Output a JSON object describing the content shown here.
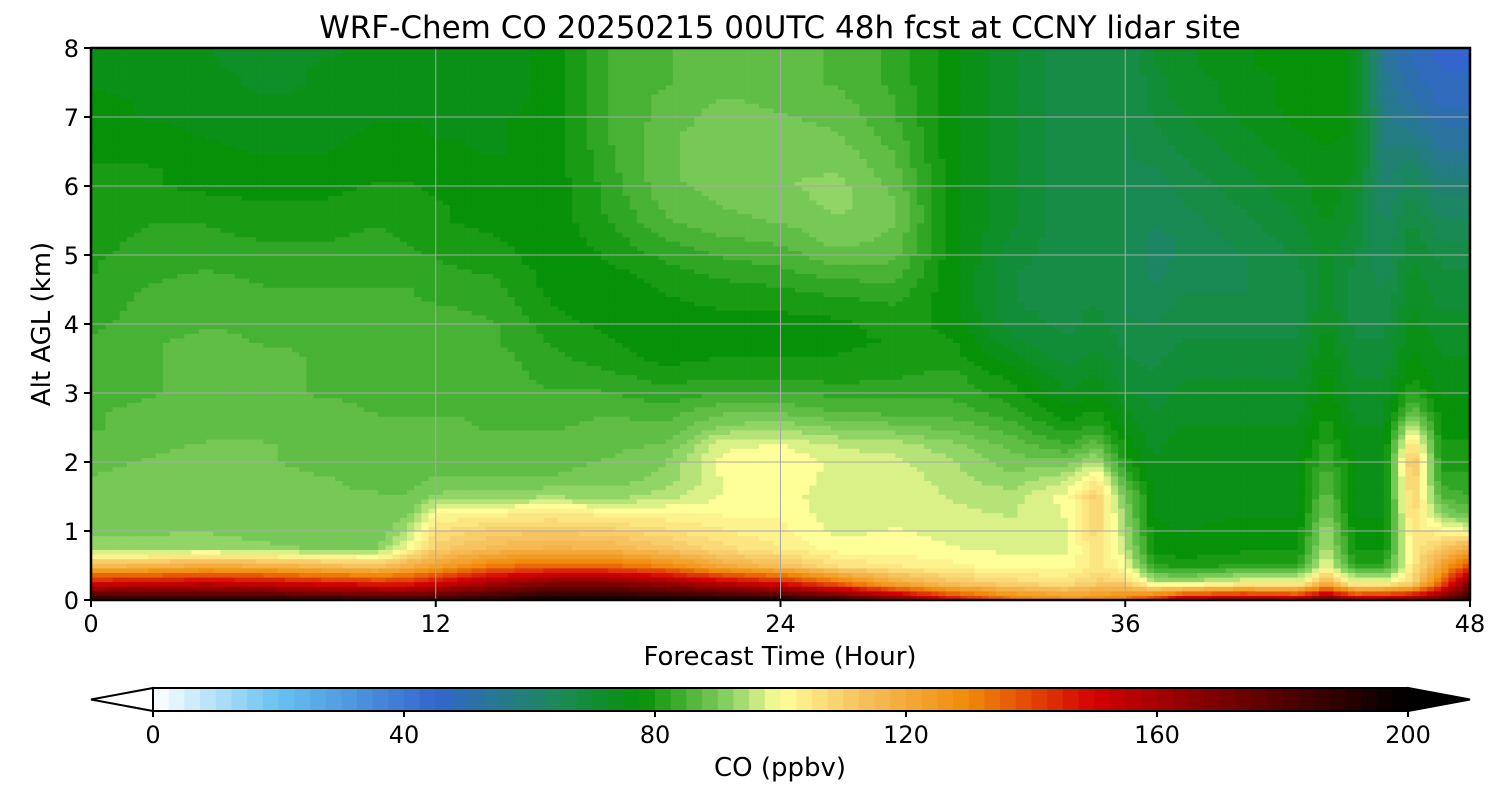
{
  "chart_data": {
    "type": "contour",
    "title": "WRF-Chem CO  20250215 00UTC 48h fcst at CCNY lidar site",
    "xlabel": "Forecast Time (Hour)",
    "ylabel": "Alt AGL (km)",
    "xlim": [
      0,
      48
    ],
    "ylim": [
      0,
      8
    ],
    "xticks": [
      0,
      12,
      24,
      36,
      48
    ],
    "yticks": [
      0,
      1,
      2,
      3,
      4,
      5,
      6,
      7,
      8
    ],
    "grid": true,
    "colorbar": {
      "label": "CO  (ppbv)",
      "vmin": 0,
      "vmax": 200,
      "ticks": [
        0,
        40,
        80,
        120,
        160,
        200
      ],
      "extend": "both",
      "colormap": [
        {
          "v": 0,
          "c": "#ffffff"
        },
        {
          "v": 20,
          "c": "#66c2f0"
        },
        {
          "v": 45,
          "c": "#3366cc"
        },
        {
          "v": 65,
          "c": "#1a8a55"
        },
        {
          "v": 78,
          "c": "#069206"
        },
        {
          "v": 92,
          "c": "#8ad264"
        },
        {
          "v": 100,
          "c": "#ffff99"
        },
        {
          "v": 112,
          "c": "#f7c462"
        },
        {
          "v": 130,
          "c": "#f08a08"
        },
        {
          "v": 150,
          "c": "#d40000"
        },
        {
          "v": 165,
          "c": "#8e0000"
        },
        {
          "v": 200,
          "c": "#000000"
        }
      ]
    },
    "columns": [
      {
        "t": 0,
        "ppbv": [
          190,
          150,
          115,
          92,
          91,
          90,
          90,
          89,
          88,
          87,
          86,
          86,
          85,
          84,
          84,
          84,
          83,
          82,
          82,
          81,
          81,
          80,
          80,
          79,
          79,
          79,
          78,
          78,
          77,
          77,
          76,
          76,
          76
        ]
      },
      {
        "t": 2,
        "ppbv": [
          190,
          152,
          117,
          92,
          91,
          91,
          91,
          90,
          89,
          88,
          87,
          87,
          86,
          86,
          86,
          86,
          85,
          85,
          84,
          83,
          82,
          82,
          81,
          80,
          79,
          79,
          78,
          77,
          76,
          76,
          75,
          75,
          75
        ]
      },
      {
        "t": 4,
        "ppbv": [
          191,
          154,
          120,
          94,
          91,
          91,
          91,
          90,
          90,
          89,
          88,
          87,
          87,
          87,
          87,
          87,
          86,
          86,
          85,
          84,
          83,
          82,
          81,
          80,
          78,
          78,
          77,
          76,
          76,
          75,
          75,
          74,
          74
        ]
      },
      {
        "t": 6,
        "ppbv": [
          190,
          152,
          118,
          92,
          90,
          90,
          90,
          90,
          89,
          89,
          88,
          87,
          87,
          87,
          87,
          86,
          86,
          85,
          84,
          83,
          82,
          81,
          80,
          79,
          77,
          77,
          76,
          75,
          74,
          74,
          73,
          73,
          72
        ]
      },
      {
        "t": 8,
        "ppbv": [
          188,
          148,
          115,
          91,
          90,
          90,
          89,
          89,
          88,
          88,
          87,
          87,
          86,
          86,
          86,
          86,
          85,
          85,
          84,
          83,
          82,
          81,
          80,
          79,
          78,
          77,
          76,
          75,
          75,
          74,
          74,
          74,
          73
        ]
      },
      {
        "t": 10,
        "ppbv": [
          186,
          145,
          112,
          91,
          89,
          89,
          89,
          88,
          88,
          87,
          87,
          86,
          86,
          86,
          86,
          86,
          85,
          85,
          84,
          83,
          82,
          82,
          81,
          80,
          79,
          78,
          78,
          77,
          76,
          76,
          75,
          75,
          75
        ]
      },
      {
        "t": 11,
        "ppbv": [
          185,
          145,
          118,
          100,
          95,
          90,
          89,
          88,
          88,
          87,
          87,
          86,
          86,
          86,
          86,
          85,
          85,
          84,
          84,
          83,
          82,
          81,
          80,
          80,
          79,
          78,
          78,
          77,
          76,
          76,
          75,
          75,
          75
        ]
      },
      {
        "t": 12,
        "ppbv": [
          186,
          150,
          122,
          110,
          106,
          101,
          92,
          89,
          88,
          87,
          87,
          86,
          86,
          86,
          86,
          85,
          85,
          84,
          83,
          82,
          81,
          80,
          79,
          79,
          78,
          78,
          77,
          76,
          76,
          75,
          75,
          75,
          74
        ]
      },
      {
        "t": 14,
        "ppbv": [
          190,
          160,
          132,
          115,
          110,
          103,
          93,
          89,
          88,
          87,
          86,
          86,
          85,
          85,
          85,
          84,
          84,
          83,
          82,
          81,
          80,
          79,
          78,
          78,
          77,
          77,
          76,
          76,
          76,
          75,
          75,
          75,
          75
        ]
      },
      {
        "t": 16,
        "ppbv": [
          198,
          168,
          136,
          117,
          111,
          104,
          94,
          89,
          88,
          87,
          86,
          85,
          84,
          83,
          82,
          81,
          80,
          79,
          78,
          78,
          77,
          77,
          77,
          77,
          77,
          77,
          77,
          77,
          77,
          77,
          77,
          77,
          77
        ]
      },
      {
        "t": 18,
        "ppbv": [
          196,
          168,
          135,
          116,
          110,
          103,
          93,
          90,
          89,
          88,
          87,
          86,
          84,
          82,
          80,
          79,
          78,
          77,
          77,
          78,
          79,
          80,
          81,
          82,
          82,
          83,
          83,
          84,
          84,
          84,
          84,
          84,
          84
        ]
      },
      {
        "t": 20,
        "ppbv": [
          196,
          163,
          130,
          112,
          107,
          102,
          95,
          92,
          91,
          89,
          87,
          85,
          82,
          80,
          78,
          77,
          77,
          78,
          79,
          80,
          82,
          84,
          86,
          87,
          88,
          88,
          88,
          88,
          87,
          87,
          86,
          86,
          86
        ]
      },
      {
        "t": 22,
        "ppbv": [
          194,
          155,
          120,
          107,
          104,
          101,
          99,
          99,
          100,
          98,
          92,
          88,
          84,
          81,
          79,
          78,
          78,
          79,
          80,
          82,
          84,
          86,
          88,
          89,
          90,
          91,
          91,
          91,
          90,
          89,
          88,
          88,
          88
        ]
      },
      {
        "t": 24,
        "ppbv": [
          192,
          148,
          114,
          104,
          102,
          101,
          100,
          100,
          101,
          99,
          93,
          88,
          84,
          81,
          79,
          78,
          78,
          79,
          81,
          83,
          85,
          87,
          89,
          90,
          91,
          91,
          91,
          90,
          89,
          88,
          87,
          87,
          87
        ]
      },
      {
        "t": 26,
        "ppbv": [
          185,
          135,
          106,
          100,
          98,
          97,
          97,
          98,
          98,
          96,
          91,
          86,
          83,
          80,
          79,
          78,
          78,
          80,
          82,
          85,
          88,
          90,
          91,
          92,
          92,
          91,
          90,
          89,
          88,
          87,
          86,
          86,
          86
        ]
      },
      {
        "t": 28,
        "ppbv": [
          170,
          120,
          104,
          100,
          99,
          98,
          98,
          98,
          97,
          95,
          90,
          85,
          83,
          81,
          80,
          79,
          80,
          81,
          83,
          85,
          87,
          88,
          89,
          89,
          88,
          87,
          86,
          85,
          84,
          84,
          83,
          83,
          83
        ]
      },
      {
        "t": 30,
        "ppbv": [
          150,
          112,
          102,
          99,
          98,
          97,
          96,
          95,
          94,
          92,
          88,
          85,
          83,
          82,
          80,
          79,
          78,
          77,
          77,
          77,
          77,
          77,
          77,
          77,
          77,
          77,
          77,
          77,
          77,
          77,
          77,
          77,
          77
        ]
      },
      {
        "t": 32,
        "ppbv": [
          135,
          108,
          100,
          98,
          97,
          96,
          95,
          92,
          90,
          88,
          85,
          82,
          80,
          78,
          75,
          72,
          70,
          69,
          69,
          69,
          70,
          71,
          72,
          72,
          72,
          72,
          72,
          72,
          72,
          72,
          72,
          72,
          72
        ]
      },
      {
        "t": 34,
        "ppbv": [
          128,
          106,
          100,
          98,
          98,
          99,
          100,
          96,
          90,
          84,
          80,
          77,
          74,
          72,
          70,
          69,
          68,
          68,
          67,
          67,
          67,
          67,
          67,
          67,
          67,
          67,
          67,
          67,
          67,
          67,
          67,
          67,
          67
        ]
      },
      {
        "t": 35,
        "ppbv": [
          130,
          110,
          105,
          106,
          108,
          110,
          110,
          104,
          95,
          88,
          82,
          79,
          76,
          74,
          72,
          71,
          70,
          69,
          68,
          68,
          68,
          68,
          68,
          68,
          68,
          68,
          68,
          68,
          68,
          68,
          68,
          68,
          68
        ]
      },
      {
        "t": 36,
        "ppbv": [
          135,
          110,
          100,
          96,
          94,
          92,
          90,
          85,
          80,
          78,
          76,
          74,
          72,
          70,
          69,
          68,
          67,
          66,
          66,
          66,
          66,
          66,
          66,
          66,
          66,
          66,
          66,
          66,
          66,
          66,
          66,
          66,
          66
        ]
      },
      {
        "t": 37,
        "ppbv": [
          145,
          96,
          82,
          78,
          77,
          76,
          76,
          75,
          74,
          73,
          72,
          71,
          70,
          69,
          68,
          67,
          66,
          65,
          64,
          63,
          63,
          63,
          64,
          64,
          65,
          66,
          67,
          68,
          69,
          70,
          70,
          71,
          71
        ]
      },
      {
        "t": 38,
        "ppbv": [
          160,
          95,
          80,
          77,
          76,
          76,
          76,
          76,
          76,
          75,
          74,
          73,
          72,
          71,
          70,
          69,
          68,
          67,
          66,
          65,
          64,
          64,
          65,
          66,
          67,
          68,
          69,
          70,
          71,
          72,
          72,
          73,
          73
        ]
      },
      {
        "t": 40,
        "ppbv": [
          165,
          100,
          82,
          78,
          77,
          76,
          76,
          76,
          76,
          75,
          74,
          73,
          72,
          71,
          70,
          69,
          68,
          67,
          66,
          66,
          66,
          67,
          68,
          69,
          70,
          71,
          72,
          73,
          74,
          75,
          75,
          76,
          76
        ]
      },
      {
        "t": 42,
        "ppbv": [
          160,
          100,
          82,
          78,
          77,
          76,
          76,
          76,
          76,
          75,
          74,
          73,
          72,
          71,
          70,
          69,
          68,
          68,
          68,
          68,
          69,
          70,
          71,
          72,
          73,
          74,
          75,
          76,
          77,
          77,
          77,
          77,
          77
        ]
      },
      {
        "t": 43,
        "ppbv": [
          175,
          118,
          100,
          96,
          94,
          90,
          88,
          86,
          84,
          82,
          80,
          79,
          78,
          77,
          76,
          75,
          74,
          73,
          72,
          72,
          72,
          73,
          74,
          75,
          75,
          76,
          76,
          77,
          77,
          77,
          77,
          77,
          77
        ]
      },
      {
        "t": 44,
        "ppbv": [
          160,
          100,
          82,
          78,
          77,
          76,
          76,
          76,
          76,
          75,
          74,
          73,
          72,
          71,
          70,
          69,
          68,
          68,
          68,
          68,
          69,
          70,
          71,
          72,
          73,
          74,
          75,
          76,
          76,
          76,
          76,
          76,
          76
        ]
      },
      {
        "t": 45,
        "ppbv": [
          162,
          100,
          82,
          78,
          77,
          76,
          76,
          76,
          76,
          75,
          74,
          73,
          72,
          71,
          70,
          69,
          68,
          67,
          66,
          65,
          64,
          64,
          63,
          62,
          61,
          60,
          59,
          58,
          57,
          56,
          55,
          54,
          54
        ]
      },
      {
        "t": 46,
        "ppbv": [
          165,
          108,
          104,
          104,
          105,
          108,
          110,
          112,
          114,
          108,
          98,
          88,
          82,
          78,
          77,
          76,
          75,
          74,
          73,
          72,
          71,
          70,
          69,
          67,
          65,
          63,
          60,
          57,
          54,
          52,
          50,
          49,
          48
        ]
      },
      {
        "t": 47,
        "ppbv": [
          175,
          135,
          122,
          112,
          102,
          92,
          86,
          82,
          80,
          79,
          78,
          77,
          76,
          75,
          74,
          73,
          72,
          71,
          70,
          69,
          68,
          66,
          64,
          62,
          60,
          57,
          54,
          52,
          50,
          48,
          47,
          46,
          45
        ]
      },
      {
        "t": 48,
        "ppbv": [
          190,
          170,
          140,
          120,
          100,
          88,
          84,
          82,
          80,
          79,
          78,
          77,
          76,
          75,
          74,
          73,
          72,
          71,
          70,
          69,
          68,
          66,
          64,
          62,
          60,
          57,
          54,
          52,
          50,
          48,
          47,
          46,
          45
        ]
      }
    ],
    "levels_km": [
      0,
      0.25,
      0.5,
      0.75,
      1,
      1.25,
      1.5,
      1.75,
      2,
      2.25,
      2.5,
      2.75,
      3,
      3.25,
      3.5,
      3.75,
      4,
      4.25,
      4.5,
      4.75,
      5,
      5.25,
      5.5,
      5.75,
      6,
      6.25,
      6.5,
      6.75,
      7,
      7.25,
      7.5,
      7.75,
      8
    ]
  }
}
